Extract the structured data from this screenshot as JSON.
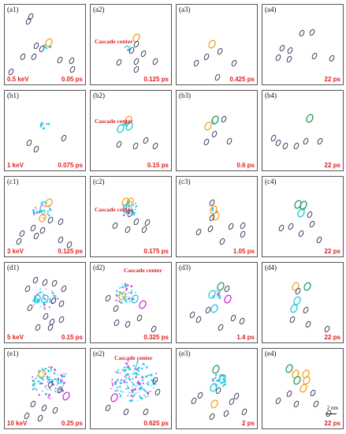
{
  "panels": [
    {
      "label": "(a1)",
      "energy": "0.5 keV",
      "time": "0.05 ps",
      "cascade": false,
      "rings": [
        [
          33,
          15,
          "k"
        ],
        [
          30,
          21,
          "k"
        ],
        [
          56,
          48,
          "o"
        ],
        [
          40,
          52,
          "k"
        ],
        [
          47,
          56,
          "k"
        ],
        [
          37,
          66,
          "k"
        ],
        [
          23,
          66,
          "k"
        ],
        [
          70,
          70,
          "k"
        ],
        [
          85,
          71,
          "k"
        ],
        [
          86,
          82,
          "k"
        ],
        [
          8,
          85,
          "k"
        ]
      ],
      "cloud": {
        "x": 53,
        "y": 52,
        "n": 8,
        "r": 5
      },
      "pink": 0
    },
    {
      "label": "(a2)",
      "energy": "",
      "time": "0.125 ps",
      "cascade": true,
      "rings": [
        [
          58,
          42,
          "o"
        ],
        [
          58,
          50,
          "k"
        ],
        [
          52,
          58,
          "k"
        ],
        [
          67,
          62,
          "k"
        ],
        [
          36,
          73,
          "k"
        ],
        [
          58,
          72,
          "k"
        ],
        [
          82,
          72,
          "k"
        ],
        [
          58,
          82,
          "k"
        ]
      ],
      "cloud": {
        "x": 46,
        "y": 55,
        "n": 8,
        "r": 5
      },
      "pink": 0
    },
    {
      "label": "(a3)",
      "energy": "",
      "time": "0.425 ps",
      "cascade": false,
      "rings": [
        [
          45,
          50,
          "o"
        ],
        [
          55,
          59,
          "k"
        ],
        [
          38,
          66,
          "k"
        ],
        [
          25,
          74,
          "k"
        ],
        [
          73,
          74,
          "k"
        ],
        [
          52,
          92,
          "k"
        ]
      ],
      "cloud": null,
      "pink": 0
    },
    {
      "label": "(a4)",
      "energy": "",
      "time": "22 ps",
      "cascade": false,
      "rings": [
        [
          50,
          36,
          "k"
        ],
        [
          63,
          35,
          "k"
        ],
        [
          25,
          55,
          "k"
        ],
        [
          35,
          58,
          "k"
        ],
        [
          20,
          67,
          "k"
        ],
        [
          34,
          69,
          "k"
        ],
        [
          66,
          65,
          "k"
        ],
        [
          88,
          68,
          "k"
        ]
      ],
      "cloud": null,
      "pink": 0
    },
    {
      "label": "(b1)",
      "energy": "1 keV",
      "time": "0.075 ps",
      "cascade": false,
      "rings": [
        [
          31,
          66,
          "k"
        ],
        [
          40,
          74,
          "k"
        ],
        [
          75,
          60,
          "k"
        ]
      ],
      "cloud": {
        "x": 50,
        "y": 43,
        "n": 10,
        "r": 6
      },
      "pink": 0
    },
    {
      "label": "(b2)",
      "energy": "",
      "time": "0.15 ps",
      "cascade": true,
      "rings": [
        [
          48,
          37,
          "o"
        ],
        [
          49,
          45,
          "c"
        ],
        [
          38,
          48,
          "c"
        ],
        [
          70,
          63,
          "k"
        ],
        [
          36,
          68,
          "k"
        ],
        [
          57,
          70,
          "k"
        ],
        [
          82,
          70,
          "k"
        ]
      ],
      "cloud": {
        "x": 45,
        "y": 42,
        "n": 8,
        "r": 5
      },
      "pink": 0
    },
    {
      "label": "(b3)",
      "energy": "",
      "time": "0.6 ps",
      "cascade": false,
      "rings": [
        [
          40,
          45,
          "o"
        ],
        [
          49,
          37,
          "g"
        ],
        [
          60,
          36,
          "k"
        ],
        [
          48,
          55,
          "k"
        ],
        [
          38,
          65,
          "k"
        ],
        [
          67,
          64,
          "k"
        ]
      ],
      "cloud": {
        "x": 46,
        "y": 40,
        "n": 4,
        "r": 3
      },
      "pink": 0
    },
    {
      "label": "(b4)",
      "energy": "",
      "time": "22 ps",
      "cascade": false,
      "rings": [
        [
          60,
          35,
          "g"
        ],
        [
          55,
          64,
          "k"
        ],
        [
          20,
          66,
          "k"
        ],
        [
          29,
          70,
          "k"
        ],
        [
          43,
          70,
          "k"
        ],
        [
          73,
          64,
          "k"
        ],
        [
          14,
          60,
          "k"
        ]
      ],
      "cloud": null,
      "pink": 0
    },
    {
      "label": "(c1)",
      "energy": "3 keV",
      "time": "0.125 ps",
      "cascade": false,
      "rings": [
        [
          56,
          33,
          "o"
        ],
        [
          48,
          52,
          "o"
        ],
        [
          58,
          55,
          "k"
        ],
        [
          71,
          57,
          "k"
        ],
        [
          36,
          65,
          "k"
        ],
        [
          48,
          68,
          "k"
        ],
        [
          22,
          72,
          "k"
        ],
        [
          40,
          75,
          "k"
        ],
        [
          18,
          82,
          "k"
        ],
        [
          71,
          80,
          "k"
        ],
        [
          82,
          86,
          "k"
        ]
      ],
      "cloud": {
        "x": 48,
        "y": 42,
        "n": 28,
        "r": 12
      },
      "pink": 8
    },
    {
      "label": "(c2)",
      "energy": "",
      "time": "0.175 ps",
      "cascade": true,
      "rings": [
        [
          44,
          32,
          "o"
        ],
        [
          50,
          32,
          "o"
        ],
        [
          45,
          40,
          "c"
        ],
        [
          50,
          47,
          "k"
        ],
        [
          58,
          57,
          "k"
        ],
        [
          72,
          58,
          "k"
        ],
        [
          31,
          62,
          "k"
        ],
        [
          47,
          67,
          "k"
        ],
        [
          68,
          67,
          "k"
        ]
      ],
      "cloud": {
        "x": 49,
        "y": 40,
        "n": 26,
        "r": 11
      },
      "pink": 6
    },
    {
      "label": "(c3)",
      "energy": "",
      "time": "1.05 ps",
      "cascade": false,
      "rings": [
        [
          47,
          42,
          "o"
        ],
        [
          50,
          50,
          "o"
        ],
        [
          45,
          52,
          "k"
        ],
        [
          45,
          33,
          "k"
        ],
        [
          69,
          63,
          "k"
        ],
        [
          84,
          62,
          "k"
        ],
        [
          43,
          66,
          "k"
        ],
        [
          28,
          70,
          "k"
        ],
        [
          84,
          73,
          "k"
        ],
        [
          58,
          82,
          "k"
        ]
      ],
      "cloud": {
        "x": 48,
        "y": 44,
        "n": 6,
        "r": 5
      },
      "pink": 0
    },
    {
      "label": "(c4)",
      "energy": "",
      "time": "22 ps",
      "cascade": false,
      "rings": [
        [
          45,
          35,
          "g"
        ],
        [
          52,
          36,
          "g"
        ],
        [
          49,
          46,
          "c"
        ],
        [
          60,
          48,
          "k"
        ],
        [
          63,
          60,
          "k"
        ],
        [
          24,
          65,
          "k"
        ],
        [
          36,
          63,
          "k"
        ],
        [
          49,
          72,
          "k"
        ],
        [
          72,
          80,
          "k"
        ]
      ],
      "cloud": {
        "x": 50,
        "y": 41,
        "n": 3,
        "r": 3
      },
      "pink": 0
    },
    {
      "label": "(d1)",
      "energy": "5 keV",
      "time": "0.15 ps",
      "cascade": false,
      "rings": [
        [
          39,
          22,
          "k"
        ],
        [
          51,
          25,
          "k"
        ],
        [
          63,
          26,
          "k"
        ],
        [
          29,
          33,
          "k"
        ],
        [
          75,
          33,
          "k"
        ],
        [
          41,
          46,
          "c"
        ],
        [
          51,
          46,
          "c"
        ],
        [
          62,
          48,
          "k"
        ],
        [
          72,
          52,
          "k"
        ],
        [
          32,
          57,
          "k"
        ],
        [
          52,
          68,
          "k"
        ],
        [
          60,
          75,
          "k"
        ],
        [
          72,
          72,
          "k"
        ],
        [
          42,
          82,
          "k"
        ],
        [
          58,
          82,
          "k"
        ]
      ],
      "cloud": {
        "x": 50,
        "y": 45,
        "n": 30,
        "r": 16
      },
      "pink": 10
    },
    {
      "label": "(d2)",
      "energy": "",
      "time": "0.325 ps",
      "cascade": true,
      "rings": [
        [
          40,
          42,
          "o"
        ],
        [
          56,
          46,
          "c"
        ],
        [
          66,
          53,
          "p"
        ],
        [
          62,
          70,
          "k"
        ],
        [
          47,
          78,
          "k"
        ],
        [
          33,
          76,
          "k"
        ],
        [
          80,
          84,
          "k"
        ],
        [
          22,
          45,
          "k"
        ],
        [
          32,
          58,
          "k"
        ]
      ],
      "cloud": {
        "x": 44,
        "y": 40,
        "n": 34,
        "r": 14
      },
      "pink": 12
    },
    {
      "label": "(d3)",
      "energy": "",
      "time": "1.4 ps",
      "cascade": false,
      "rings": [
        [
          56,
          30,
          "g"
        ],
        [
          64,
          33,
          "k"
        ],
        [
          45,
          40,
          "c"
        ],
        [
          65,
          46,
          "p"
        ],
        [
          48,
          58,
          "c"
        ],
        [
          40,
          60,
          "k"
        ],
        [
          20,
          66,
          "k"
        ],
        [
          28,
          72,
          "k"
        ],
        [
          72,
          70,
          "k"
        ],
        [
          83,
          74,
          "k"
        ],
        [
          56,
          82,
          "k"
        ]
      ],
      "cloud": {
        "x": 50,
        "y": 40,
        "n": 10,
        "r": 8
      },
      "pink": 3
    },
    {
      "label": "(d4)",
      "energy": "",
      "time": "22 ps",
      "cascade": false,
      "rings": [
        [
          42,
          30,
          "o"
        ],
        [
          57,
          30,
          "g"
        ],
        [
          45,
          36,
          "k"
        ],
        [
          44,
          48,
          "c"
        ],
        [
          40,
          58,
          "c"
        ],
        [
          55,
          60,
          "k"
        ],
        [
          38,
          72,
          "k"
        ],
        [
          58,
          78,
          "k"
        ],
        [
          82,
          84,
          "k"
        ]
      ],
      "cloud": null,
      "pink": 0
    },
    {
      "label": "(e1)",
      "energy": "10 keV",
      "time": "0.25 ps",
      "cascade": false,
      "rings": [
        [
          47,
          32,
          "o"
        ],
        [
          58,
          45,
          "k"
        ],
        [
          70,
          52,
          "k"
        ],
        [
          78,
          60,
          "p"
        ],
        [
          36,
          70,
          "k"
        ],
        [
          50,
          75,
          "k"
        ],
        [
          64,
          78,
          "k"
        ],
        [
          28,
          85,
          "k"
        ],
        [
          45,
          88,
          "k"
        ]
      ],
      "cloud": {
        "x": 57,
        "y": 42,
        "n": 70,
        "r": 22
      },
      "pink": 25
    },
    {
      "label": "(e2)",
      "energy": "",
      "time": "0.625 ps",
      "cascade": true,
      "rings": [
        [
          82,
          40,
          "k"
        ],
        [
          30,
          62,
          "p"
        ],
        [
          85,
          55,
          "k"
        ],
        [
          70,
          80,
          "k"
        ],
        [
          45,
          80,
          "k"
        ],
        [
          22,
          75,
          "k"
        ]
      ],
      "cloud": {
        "x": 55,
        "y": 42,
        "n": 120,
        "r": 28
      },
      "pink": 40
    },
    {
      "label": "(e3)",
      "energy": "",
      "time": "2 ps",
      "cascade": false,
      "rings": [
        [
          50,
          26,
          "g"
        ],
        [
          58,
          38,
          "c"
        ],
        [
          47,
          49,
          "c"
        ],
        [
          53,
          53,
          "k"
        ],
        [
          30,
          59,
          "k"
        ],
        [
          22,
          66,
          "k"
        ],
        [
          48,
          70,
          "o"
        ],
        [
          76,
          60,
          "k"
        ],
        [
          70,
          67,
          "k"
        ],
        [
          86,
          80,
          "k"
        ],
        [
          63,
          82,
          "k"
        ],
        [
          45,
          86,
          "k"
        ]
      ],
      "cloud": {
        "x": 55,
        "y": 40,
        "n": 24,
        "r": 10
      },
      "pink": 3
    },
    {
      "label": "(e4)",
      "energy": "",
      "time": "22 ps",
      "cascade": false,
      "rings": [
        [
          34,
          25,
          "g"
        ],
        [
          42,
          32,
          "o"
        ],
        [
          55,
          32,
          "o"
        ],
        [
          44,
          40,
          "g"
        ],
        [
          56,
          40,
          "o"
        ],
        [
          52,
          50,
          "o"
        ],
        [
          34,
          57,
          "k"
        ],
        [
          20,
          66,
          "k"
        ],
        [
          64,
          56,
          "k"
        ],
        [
          68,
          70,
          "k"
        ],
        [
          43,
          70,
          "k"
        ],
        [
          84,
          82,
          "k"
        ]
      ],
      "cloud": null,
      "pink": 0
    }
  ],
  "cascade_label": "Cascade center",
  "scale": "2 nm",
  "colors": {
    "k": "#2a2e50",
    "o": "#f0a020",
    "c": "#1ec8d8",
    "g": "#1f9a5a",
    "p": "#d02ad0",
    "cloud": "#2cc8e6",
    "pink": "#e040e0",
    "red": "#e02020"
  }
}
